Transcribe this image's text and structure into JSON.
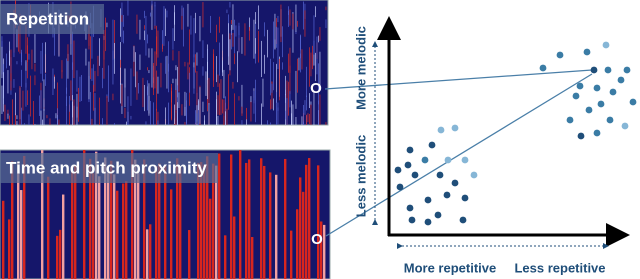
{
  "labels": {
    "top_panel": "Repetition",
    "bottom_panel": "Time and pitch proximity",
    "marker_top": "O",
    "marker_bottom": "O",
    "y_top": "More melodic",
    "y_bottom": "Less melodic",
    "x_left": "More repetitive",
    "x_right": "Less repetitive"
  }
}
